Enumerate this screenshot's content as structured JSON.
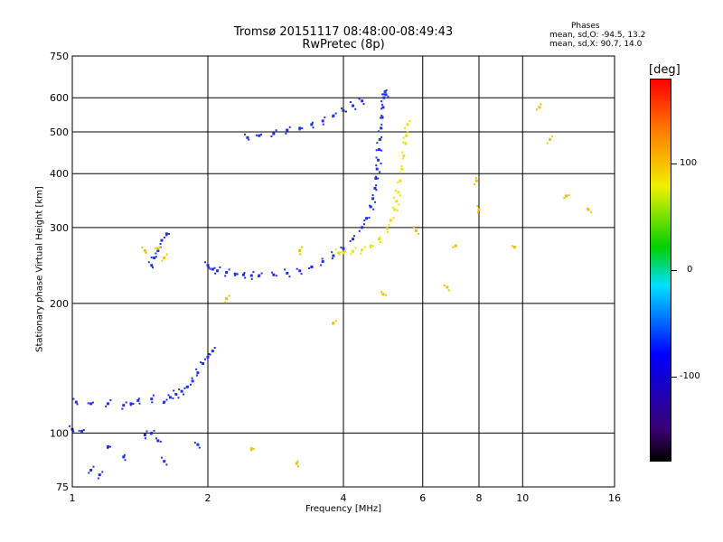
{
  "chart_data": {
    "type": "scatter",
    "title": "Tromsø 20151117 08:48:00-08:49:43",
    "subtitle": "RwPretec (8p)",
    "xlabel": "Frequency [MHz]",
    "ylabel": "Stationary phase Virtual Height [km]",
    "x_scale": "log",
    "y_scale": "log",
    "xlim": [
      1,
      16
    ],
    "ylim": [
      75,
      750
    ],
    "x_ticks": [
      1,
      2,
      4,
      6,
      8,
      10,
      16
    ],
    "y_ticks": [
      75,
      100,
      200,
      300,
      400,
      500,
      600,
      750
    ],
    "grid": true,
    "phase_info": {
      "title": "Phases",
      "o_mode": "mean, sd,O: -94.5, 13.2",
      "x_mode": "mean, sd,X:  90.7, 14.0"
    },
    "colorbar": {
      "label": "[deg]",
      "range": [
        -180,
        180
      ],
      "ticks": [
        {
          "value": 100,
          "label": "100"
        },
        {
          "value": 0,
          "label": "0"
        },
        {
          "value": -100,
          "label": "-100"
        }
      ]
    },
    "series": [
      {
        "mode": "O",
        "phase": -95,
        "color": "#2030e0",
        "x": [
          2.0,
          2.05,
          2.1,
          2.2,
          2.3,
          2.4,
          2.5,
          2.6,
          2.8,
          3.0,
          3.2,
          3.4,
          3.6,
          3.8,
          4.0,
          4.2,
          4.4,
          4.5,
          4.6,
          4.65,
          4.7,
          4.72,
          4.75,
          4.78,
          4.8,
          4.82,
          4.85,
          4.88,
          4.9,
          4.92,
          4.95,
          4.97
        ],
        "y": [
          245,
          240,
          238,
          236,
          234,
          233,
          232,
          232,
          233,
          235,
          238,
          243,
          250,
          258,
          268,
          282,
          300,
          315,
          335,
          350,
          370,
          390,
          410,
          430,
          455,
          480,
          510,
          540,
          570,
          600,
          620,
          610
        ]
      },
      {
        "mode": "O-upper",
        "phase": -95,
        "color": "#2030e0",
        "x": [
          2.45,
          2.6,
          2.8,
          3.0,
          3.2,
          3.4,
          3.6,
          3.8,
          4.0,
          4.2,
          4.4
        ],
        "y": [
          485,
          490,
          495,
          505,
          510,
          520,
          530,
          545,
          560,
          575,
          590
        ]
      },
      {
        "mode": "X",
        "phase": 90,
        "color": "#e8e010",
        "x": [
          3.9,
          4.0,
          4.2,
          4.4,
          4.6,
          4.8,
          5.0,
          5.1,
          5.2,
          5.25,
          5.3,
          5.35,
          5.4,
          5.45,
          5.5,
          5.52,
          5.55
        ],
        "y": [
          262,
          262,
          264,
          266,
          272,
          282,
          298,
          312,
          330,
          345,
          362,
          385,
          410,
          440,
          470,
          490,
          520
        ]
      },
      {
        "mode": "E-region",
        "phase": -100,
        "color": "#2030e0",
        "x": [
          1.02,
          1.1,
          1.2,
          1.3,
          1.35,
          1.4,
          1.5,
          1.6,
          1.65,
          1.7,
          1.75,
          1.8,
          1.85,
          1.9,
          1.95,
          2.0,
          2.05
        ],
        "y": [
          118,
          117,
          117,
          116,
          117,
          119,
          120,
          118,
          121,
          123,
          125,
          128,
          132,
          138,
          145,
          150,
          155
        ]
      },
      {
        "mode": "low",
        "phase": -100,
        "color": "#2030e0",
        "x": [
          1.0,
          1.05,
          1.1,
          1.15,
          1.2,
          1.3,
          1.45,
          1.5,
          1.55,
          1.6,
          1.9
        ],
        "y": [
          102,
          101,
          82,
          80,
          93,
          88,
          99,
          100,
          96,
          86,
          94
        ]
      },
      {
        "mode": "F-low",
        "phase": -100,
        "color": "#2030e0",
        "x": [
          1.5,
          1.52,
          1.55,
          1.58,
          1.62
        ],
        "y": [
          245,
          255,
          265,
          280,
          290
        ]
      },
      {
        "mode": "scattered",
        "phase": 0,
        "color": "#e8c010",
        "x": [
          1.45,
          1.55,
          1.6,
          2.2,
          2.5,
          3.15,
          3.2,
          3.8,
          4.9,
          5.8,
          6.8,
          7.1,
          7.9,
          8.0,
          9.6,
          10.9,
          11.5,
          12.5,
          14.0
        ],
        "y": [
          265,
          268,
          255,
          205,
          92,
          85,
          265,
          180,
          210,
          295,
          218,
          272,
          385,
          330,
          270,
          570,
          480,
          355,
          330
        ]
      }
    ]
  }
}
